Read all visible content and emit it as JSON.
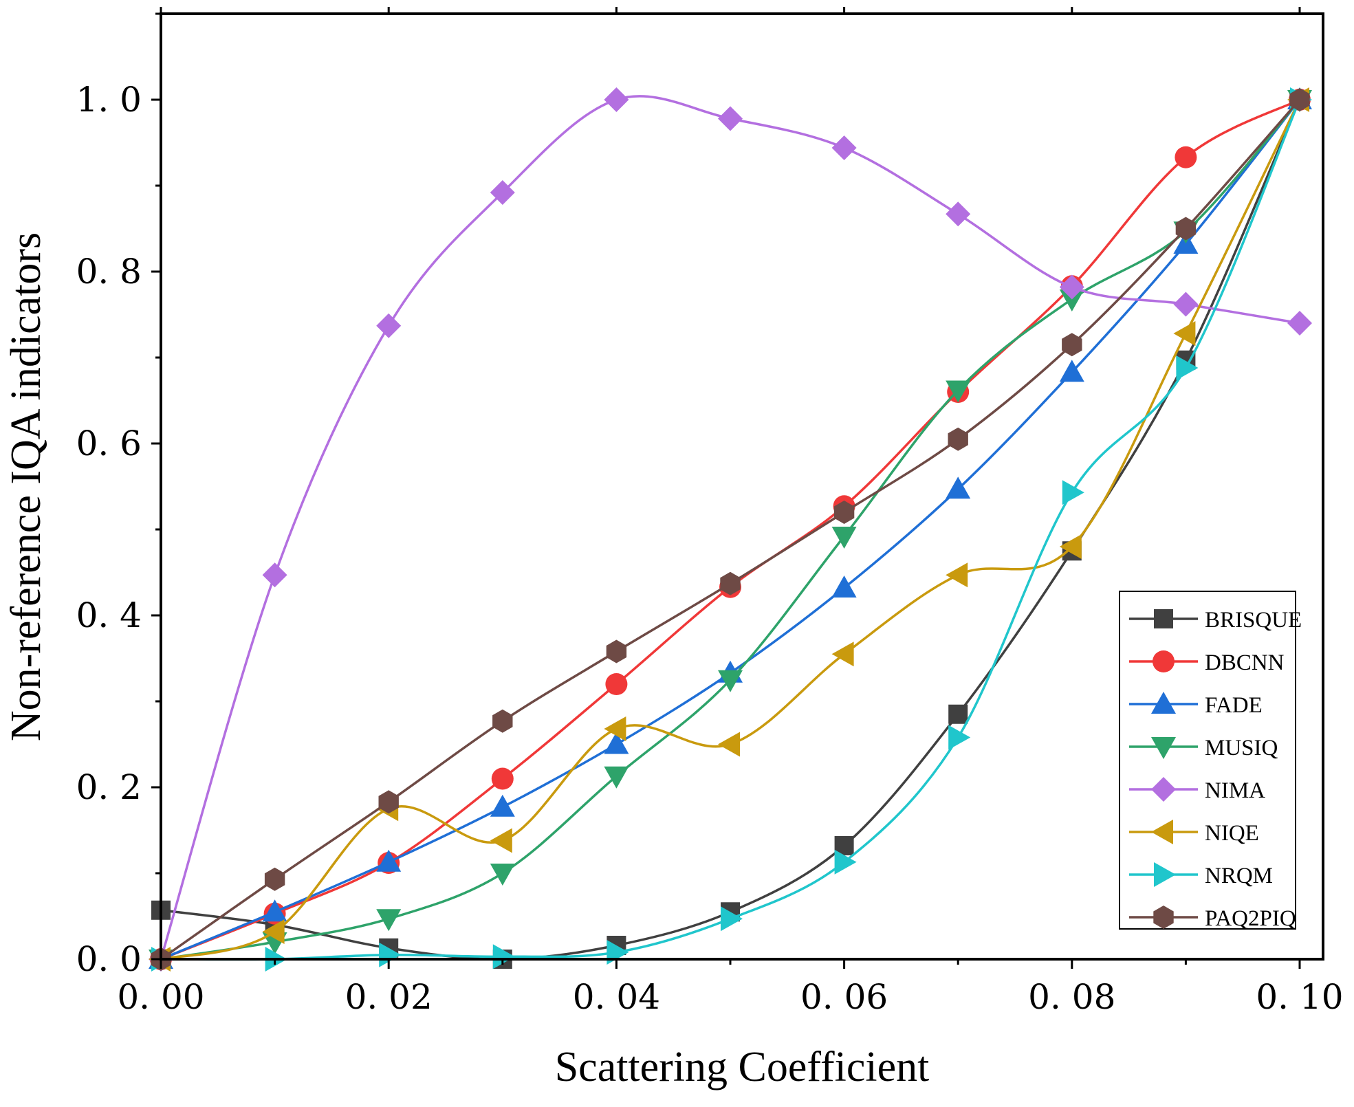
{
  "chart_data": {
    "type": "line",
    "xlabel": "Scattering Coefficient",
    "ylabel": "Non-reference IQA indicators",
    "xlim": [
      0.0,
      0.1
    ],
    "ylim": [
      0.0,
      1.1
    ],
    "x": [
      0.0,
      0.01,
      0.02,
      0.03,
      0.04,
      0.05,
      0.06,
      0.07,
      0.08,
      0.09,
      0.1
    ],
    "x_ticks": [
      0.0,
      0.02,
      0.04,
      0.06,
      0.08,
      0.1
    ],
    "x_tick_labels": [
      "0. 00",
      "0. 02",
      "0. 04",
      "0. 06",
      "0. 08",
      "0. 10"
    ],
    "y_ticks": [
      0.0,
      0.2,
      0.4,
      0.6,
      0.8,
      1.0
    ],
    "y_tick_labels": [
      "0. 0",
      "0. 2",
      "0. 4",
      "0. 6",
      "0. 8",
      "1. 0"
    ],
    "grid": false,
    "legend_position": "bottom-right",
    "series": [
      {
        "name": "BRISQUE",
        "color": "#404040",
        "marker": "square",
        "values": [
          0.057,
          0.04,
          0.013,
          0.0,
          0.016,
          0.055,
          0.132,
          0.285,
          0.475,
          0.697,
          1.0
        ]
      },
      {
        "name": "DBCNN",
        "color": "#f03838",
        "marker": "circle",
        "values": [
          0.0,
          0.053,
          0.112,
          0.21,
          0.32,
          0.433,
          0.527,
          0.66,
          0.783,
          0.933,
          1.0
        ]
      },
      {
        "name": "FADE",
        "color": "#1f6fd6",
        "marker": "triangle-up",
        "values": [
          0.0,
          0.055,
          0.113,
          0.177,
          0.25,
          0.333,
          0.432,
          0.547,
          0.683,
          0.832,
          1.0
        ]
      },
      {
        "name": "MUSIQ",
        "color": "#2ea36a",
        "marker": "triangle-down",
        "values": [
          0.0,
          0.02,
          0.047,
          0.1,
          0.213,
          0.325,
          0.492,
          0.662,
          0.768,
          0.847,
          1.0
        ]
      },
      {
        "name": "NIMA",
        "color": "#b36fe0",
        "marker": "diamond",
        "values": [
          0.0,
          0.447,
          0.737,
          0.892,
          1.0,
          0.978,
          0.944,
          0.867,
          0.782,
          0.762,
          0.74
        ]
      },
      {
        "name": "NIQE",
        "color": "#c99a0e",
        "marker": "triangle-left",
        "values": [
          0.0,
          0.032,
          0.175,
          0.138,
          0.268,
          0.25,
          0.355,
          0.447,
          0.48,
          0.728,
          1.0
        ]
      },
      {
        "name": "NRQM",
        "color": "#20c6cc",
        "marker": "triangle-right",
        "values": [
          0.0,
          0.0,
          0.005,
          0.003,
          0.008,
          0.047,
          0.113,
          0.258,
          0.543,
          0.688,
          1.0
        ]
      },
      {
        "name": "PAQ2PIQ",
        "color": "#6e4a45",
        "marker": "hexagon",
        "values": [
          0.0,
          0.093,
          0.183,
          0.277,
          0.358,
          0.437,
          0.52,
          0.605,
          0.715,
          0.85,
          1.0
        ]
      }
    ]
  }
}
